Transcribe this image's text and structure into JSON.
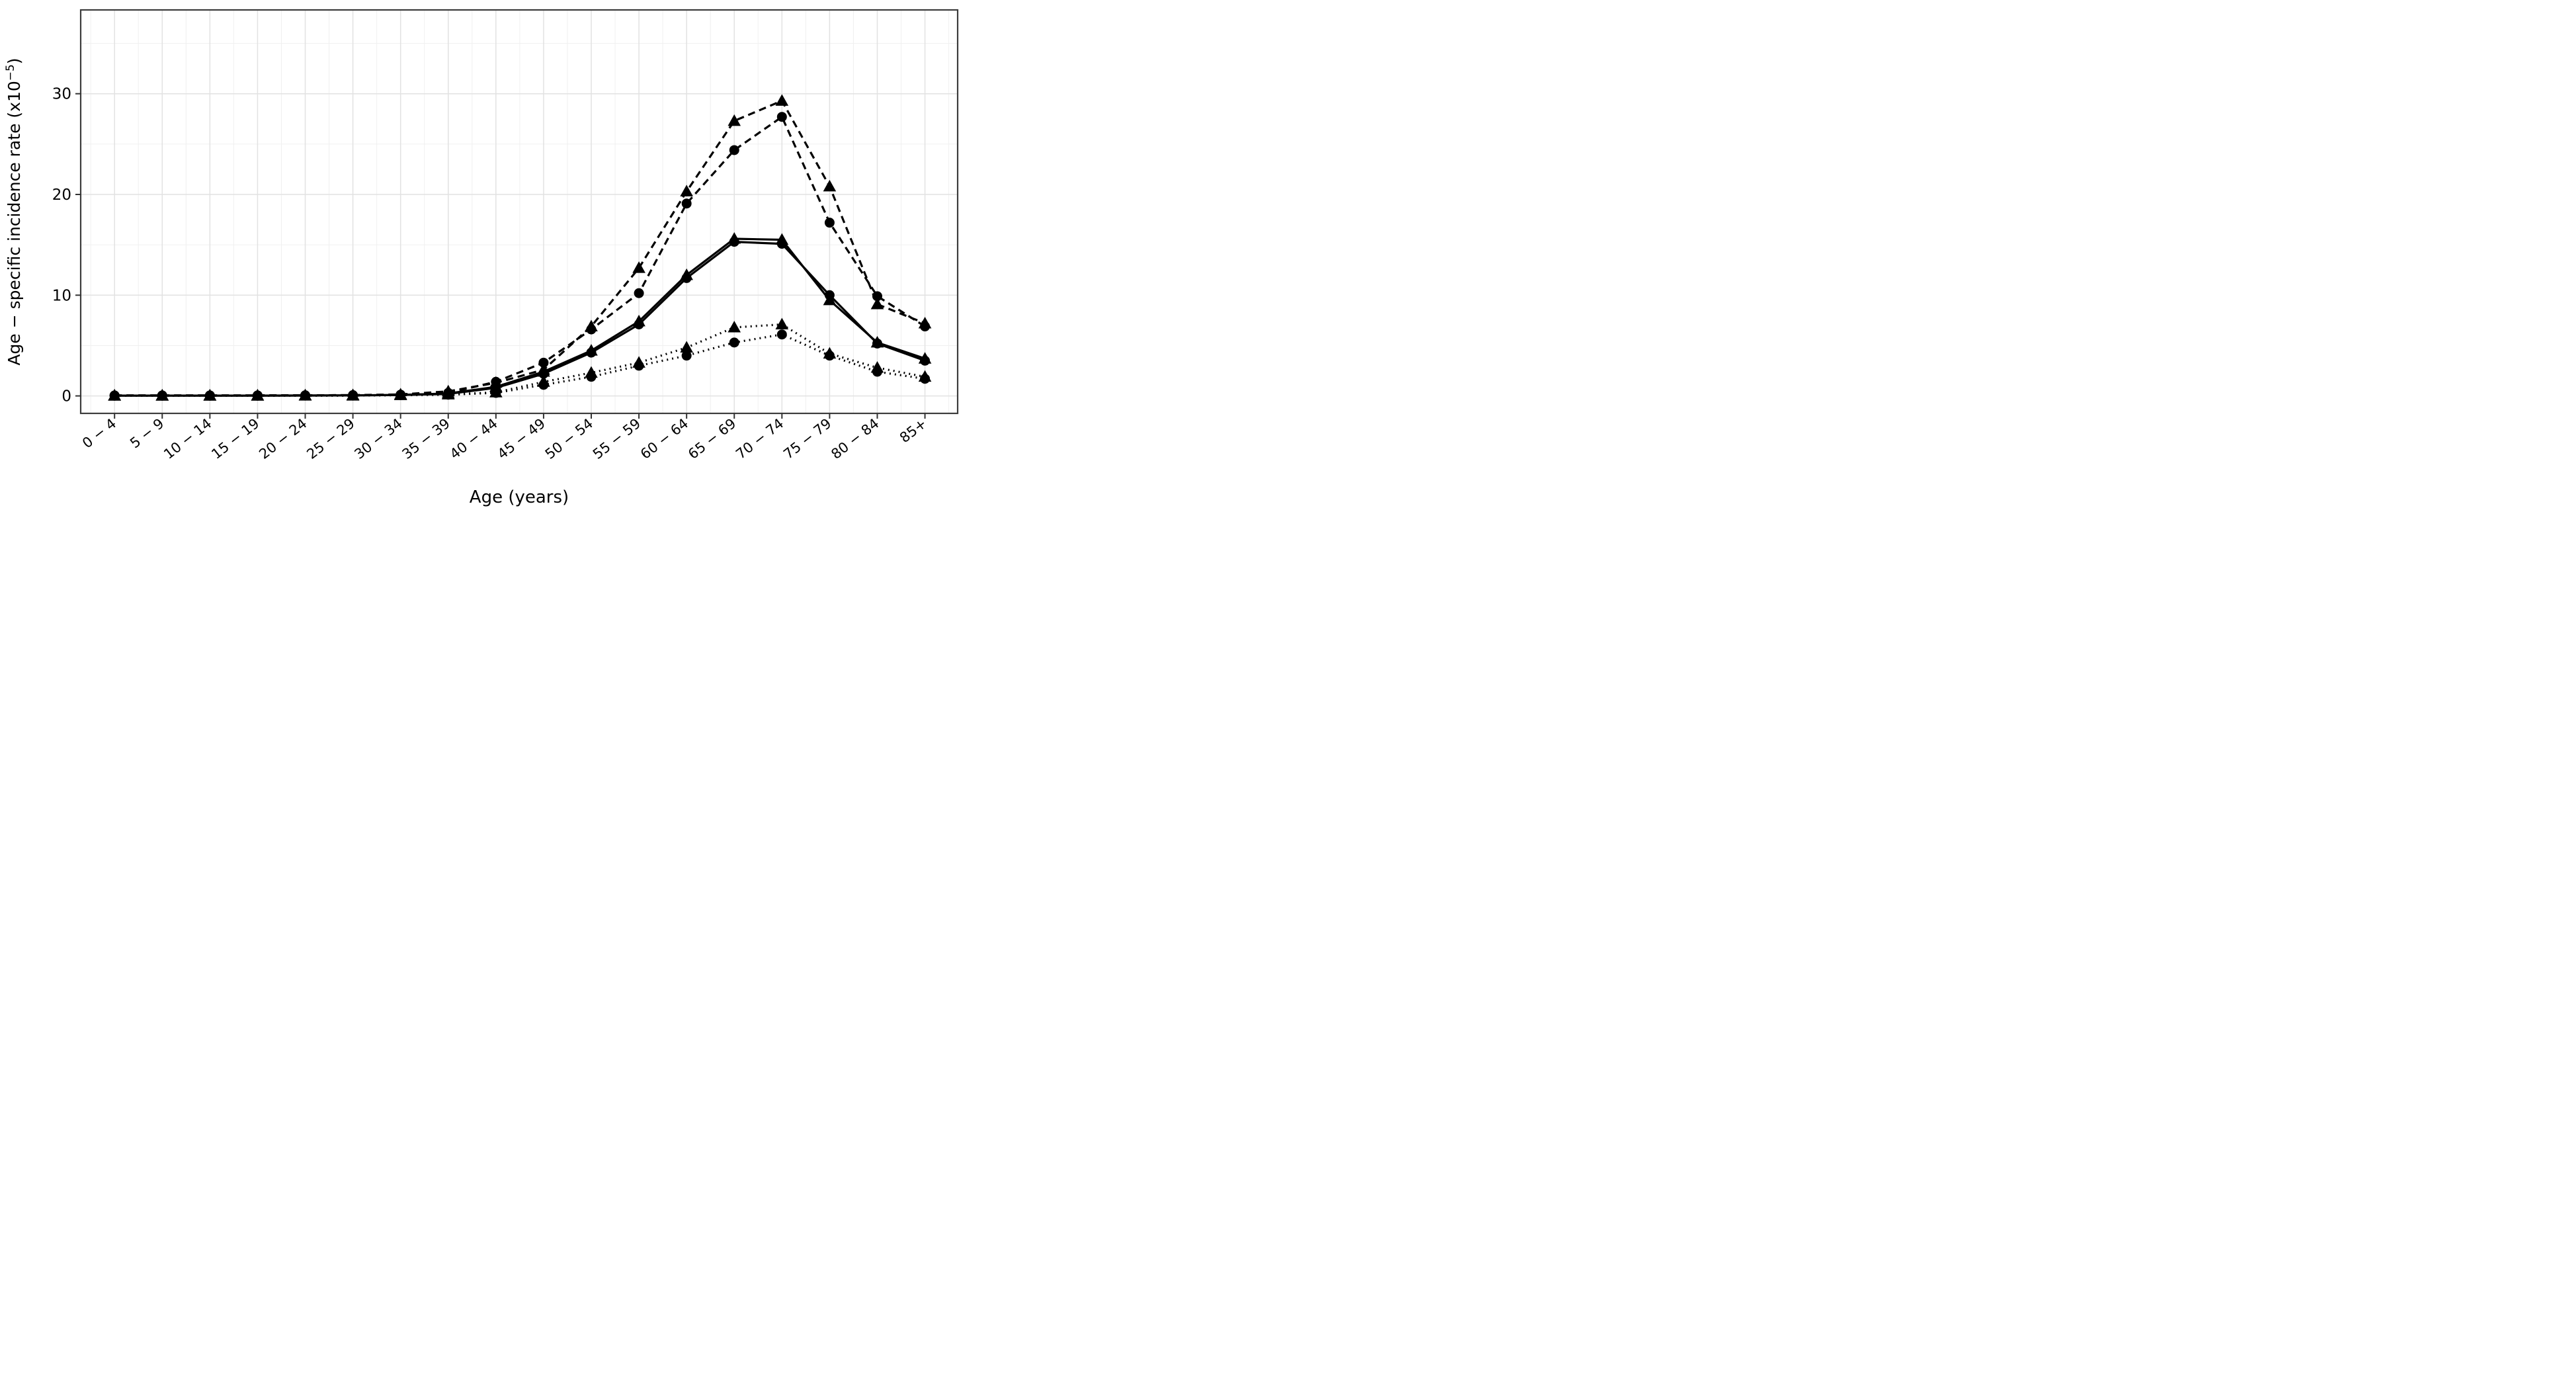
{
  "chart_data": {
    "type": "line",
    "title": "",
    "xlabel": "Age (years)",
    "ylabel": {
      "text_before_sup": "Age − specific incidence rate (x10",
      "sup": "−5",
      "text_after_sup": ")"
    },
    "categories": [
      "0 − 4",
      "5 − 9",
      "10 − 14",
      "15 − 19",
      "20 − 24",
      "25 − 29",
      "30 − 34",
      "35 − 39",
      "40 − 44",
      "45 − 49",
      "50 − 54",
      "55 − 59",
      "60 − 64",
      "65 − 69",
      "70 − 74",
      "75 − 79",
      "80 − 84",
      "85+"
    ],
    "yticks": [
      0,
      10,
      20,
      30
    ],
    "yticks_minor": [
      5,
      15,
      25,
      35
    ],
    "ylim": [
      -1.8,
      38.3
    ],
    "grid": "on",
    "legend": "none",
    "line_color": "#000000",
    "major_grid_color": "#e2e2e2",
    "minor_grid_color": "#f0f0f0",
    "border_color": "#3c3c3c",
    "series": [
      {
        "name": "dashed-triangle",
        "linestyle": "dashed",
        "marker": "triangle",
        "values": [
          0.05,
          0.05,
          0.05,
          0.05,
          0.06,
          0.08,
          0.15,
          0.45,
          1.3,
          2.6,
          6.9,
          12.7,
          20.3,
          27.3,
          29.3,
          20.8,
          9.1,
          7.2
        ]
      },
      {
        "name": "dashed-circle",
        "linestyle": "dashed",
        "marker": "circle",
        "values": [
          0.05,
          0.05,
          0.05,
          0.05,
          0.06,
          0.08,
          0.12,
          0.3,
          1.4,
          3.3,
          6.6,
          10.2,
          19.1,
          24.4,
          27.7,
          17.2,
          9.9,
          6.9
        ]
      },
      {
        "name": "solid-triangle",
        "linestyle": "solid",
        "marker": "triangle",
        "values": [
          0.03,
          0.03,
          0.03,
          0.03,
          0.04,
          0.05,
          0.1,
          0.25,
          0.9,
          2.4,
          4.5,
          7.4,
          12.0,
          15.6,
          15.5,
          9.5,
          5.3,
          3.7
        ]
      },
      {
        "name": "solid-circle",
        "linestyle": "solid",
        "marker": "circle",
        "values": [
          0.03,
          0.03,
          0.03,
          0.03,
          0.04,
          0.05,
          0.1,
          0.2,
          0.8,
          2.2,
          4.3,
          7.1,
          11.7,
          15.3,
          15.1,
          10.0,
          5.2,
          3.5
        ]
      },
      {
        "name": "dotted-triangle",
        "linestyle": "dotted",
        "marker": "triangle",
        "values": [
          0.02,
          0.02,
          0.02,
          0.02,
          0.03,
          0.03,
          0.08,
          0.15,
          0.35,
          1.4,
          2.3,
          3.3,
          4.8,
          6.8,
          7.1,
          4.2,
          2.8,
          1.9
        ]
      },
      {
        "name": "dotted-circle",
        "linestyle": "dotted",
        "marker": "circle",
        "values": [
          0.02,
          0.02,
          0.02,
          0.02,
          0.03,
          0.03,
          0.08,
          0.12,
          0.3,
          1.1,
          1.9,
          3.0,
          4.0,
          5.3,
          6.1,
          4.0,
          2.4,
          1.7
        ]
      }
    ]
  }
}
